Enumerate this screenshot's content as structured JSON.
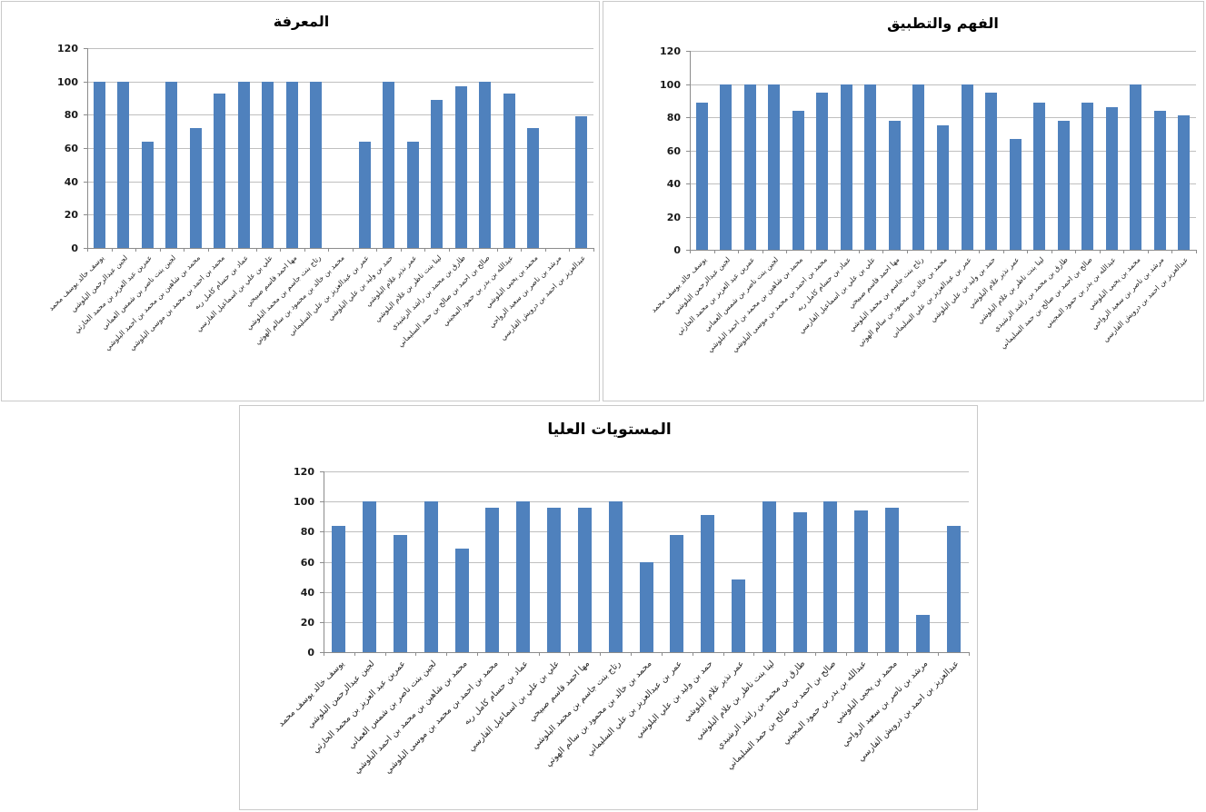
{
  "colors": {
    "bar": "#4f81bd",
    "gridline": "#bfbfbf",
    "axis_line": "#8c8c8c",
    "tick_text": "#1a1a1a",
    "title_text": "#000000",
    "window_border": "#c9c9c9",
    "background": "#ffffff"
  },
  "categories": [
    "يوسف خالد يوسف محمد",
    "لجين عبدالرحمن البلوشي",
    "عمرين عبد العزيز بن محمد الحارثي",
    "لجين بنت ناصر بن شمس العماني",
    "محمد بن شاهين بن محمد بن احمد البلوشي",
    "محمد بن احمد بن محمد بن موسى البلوشي",
    "عماد بن حسام كامل ربه",
    "علي بن علي بن اسماعيل الفارسي",
    "مها احمد قاسم صبيحي",
    "رتاج بنت جاسم بن محمد البلوشي",
    "محمد بن خالد بن محمود بن سالم الهوتي",
    "عمر بن عبدالعزيز بن علي السليماني",
    "حمد بن وليد بن علي البلوشي",
    "عمر نذير غلام البلوشي",
    "لينا بنت ناظر بن غلام البلوشي",
    "طارق بن محمد بن راشد الرشيدي",
    "صالح بن احمد بن صالح بن حمد السليماني",
    "عبدالله بن بدر بن حمود المجيني",
    "محمد بن يحيى البلوشي",
    "مرشد بن ناصر بن سعيد الرواحي",
    "عبدالعزيز بن احمد بن درويش الفارسي"
  ],
  "y_axis": {
    "min": 0,
    "max": 120,
    "step": 20,
    "tick_labels": [
      "0",
      "20",
      "40",
      "60",
      "80",
      "100",
      "120"
    ],
    "grid": true
  },
  "chart_data": [
    {
      "type": "bar",
      "title": "المعرفة",
      "ylim": [
        0,
        120
      ],
      "legend": "none",
      "values": [
        100,
        100,
        64,
        100,
        72,
        93,
        100,
        100,
        100,
        100,
        null,
        64,
        100,
        64,
        89,
        97,
        100,
        93,
        72,
        null,
        79
      ]
    },
    {
      "type": "bar",
      "title": "الفهم والتطبيق",
      "ylim": [
        0,
        120
      ],
      "legend": "none",
      "values": [
        89,
        100,
        100,
        100,
        84,
        95,
        100,
        100,
        78,
        100,
        75,
        100,
        95,
        67,
        89,
        78,
        89,
        86,
        100,
        84,
        81
      ]
    },
    {
      "type": "bar",
      "title": "المستويات العليا",
      "ylim": [
        0,
        120
      ],
      "legend": "none",
      "values": [
        84,
        100,
        78,
        100,
        69,
        96,
        100,
        96,
        96,
        100,
        60,
        78,
        91,
        48,
        100,
        93,
        100,
        94,
        96,
        25,
        84
      ]
    }
  ]
}
